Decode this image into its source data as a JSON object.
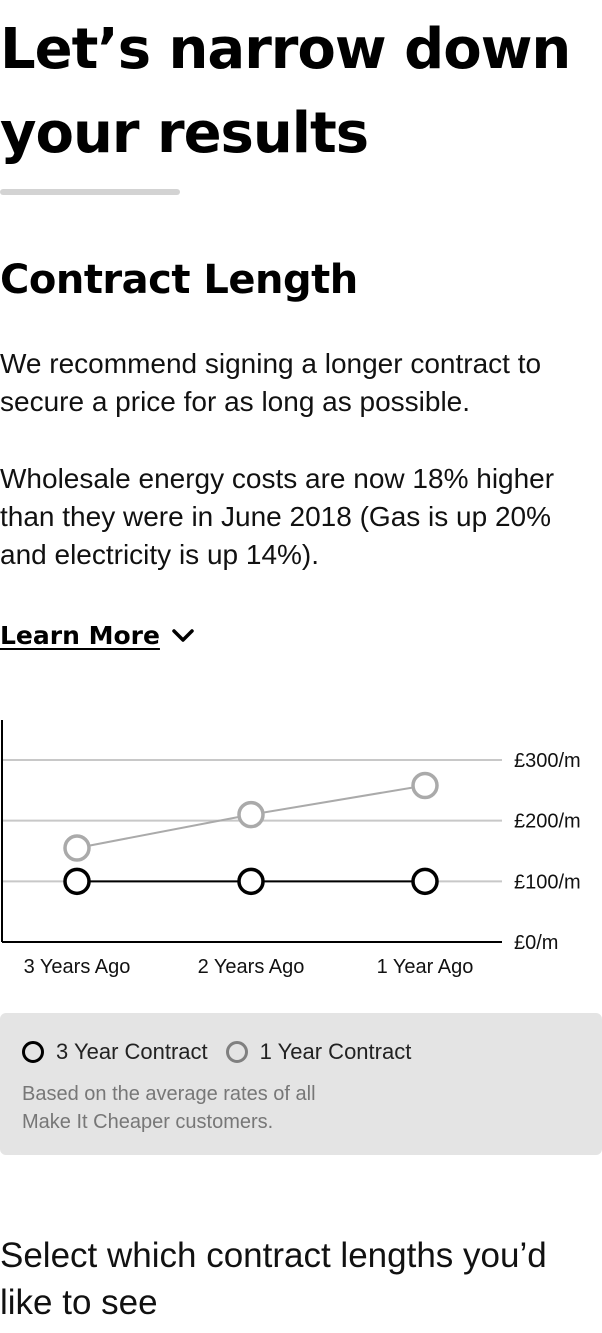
{
  "header": {
    "title": "Let’s narrow down your results"
  },
  "contract_section": {
    "heading": "Contract Length",
    "paragraph_1": "We recommend signing a longer contract to secure a price for as long as possible.",
    "paragraph_2": "Wholesale energy costs are now 18% higher than they were in June 2018 (Gas is up 20% and electricity is up 14%).",
    "learn_more_label": "Learn More",
    "learn_more_icon": "chevron-down-icon"
  },
  "chart_data": {
    "type": "line",
    "categories": [
      "3 Years Ago",
      "2 Years Ago",
      "1 Year Ago"
    ],
    "y_ticks": [
      {
        "value": 0,
        "label": "£0/m"
      },
      {
        "value": 100,
        "label": "£100/m"
      },
      {
        "value": 200,
        "label": "£200/m"
      },
      {
        "value": 300,
        "label": "£300/m"
      }
    ],
    "ylim": [
      0,
      300
    ],
    "y_axis_side": "right",
    "grid": true,
    "series": [
      {
        "name": "1 Year Contract",
        "color": "#aaaaaa",
        "values": [
          155,
          210,
          258
        ]
      },
      {
        "name": "3 Year Contract",
        "color": "#000000",
        "values": [
          100,
          100,
          100
        ]
      }
    ]
  },
  "legend": {
    "items": [
      {
        "label": "3 Year Contract",
        "color": "#000000"
      },
      {
        "label": "1 Year Contract",
        "color": "#808080"
      }
    ],
    "note": "Based on the average rates of all Make It Cheaper customers."
  },
  "select_section": {
    "heading": "Select which contract lengths you’d like to see"
  }
}
